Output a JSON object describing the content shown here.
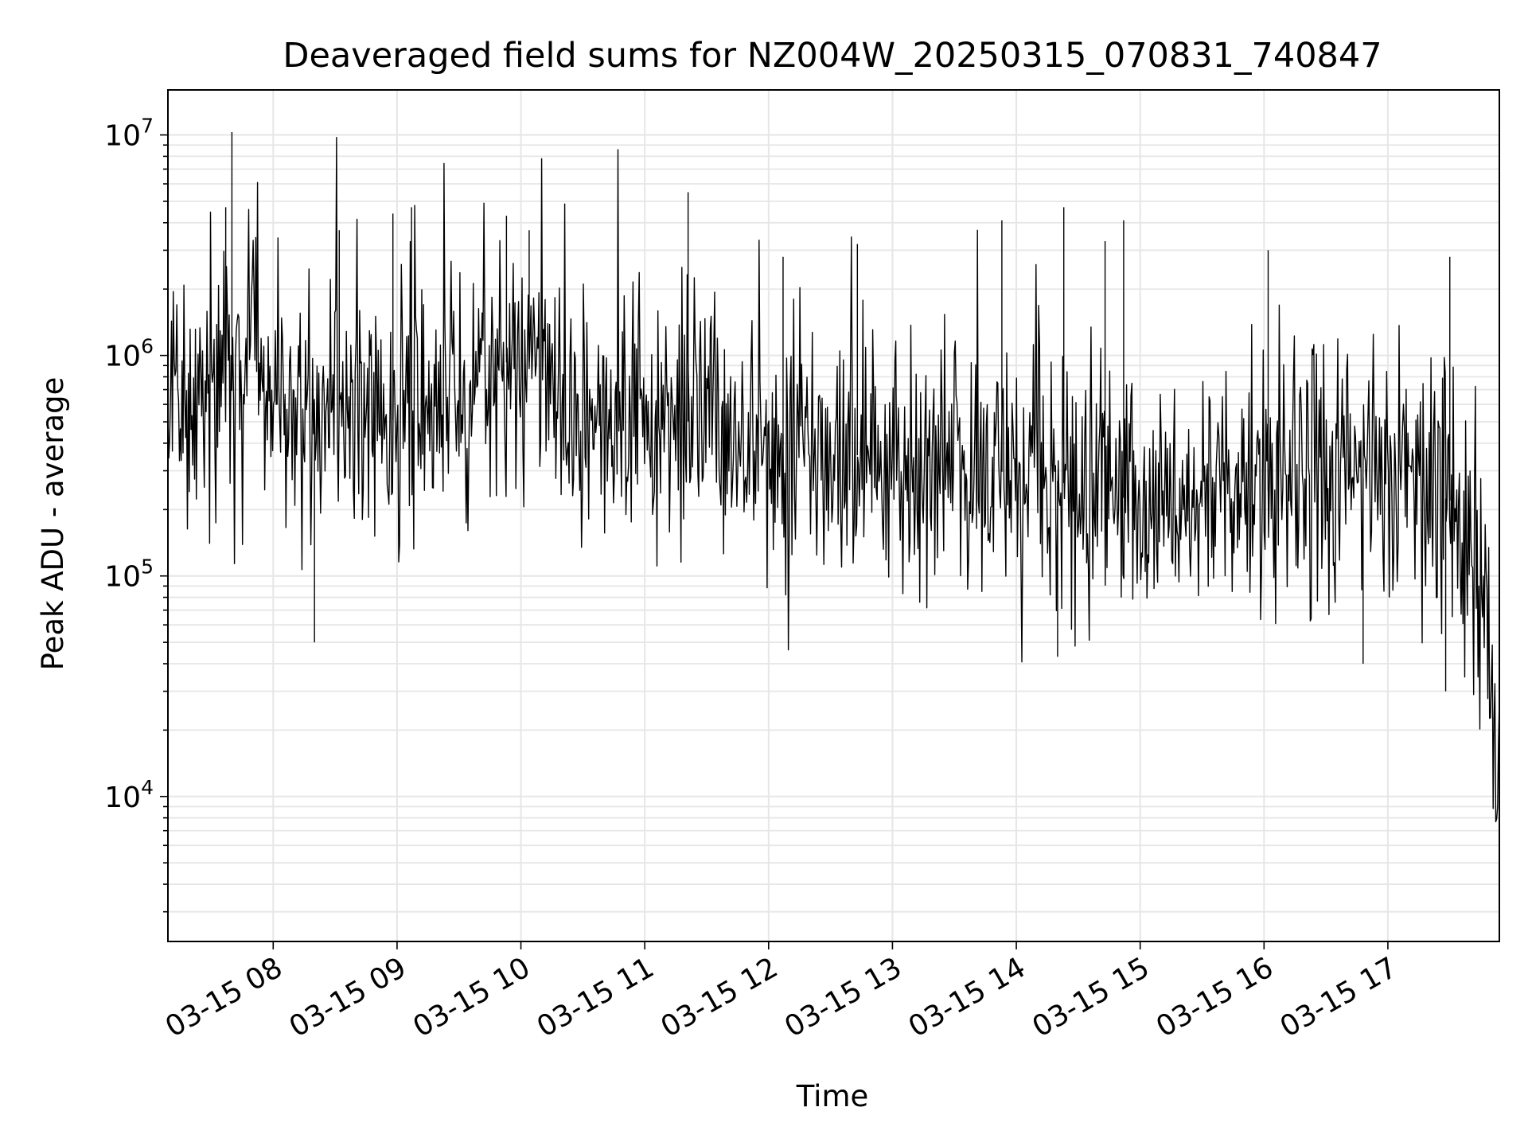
{
  "chart_data": {
    "type": "line",
    "title": "Deaveraged field sums for NZ004W_20250315_070831_740847",
    "xlabel": "Time",
    "ylabel": "Peak ADU - average",
    "yscale": "log",
    "ylim": [
      2200,
      16000000
    ],
    "xlim": [
      "2025-03-15 07:09",
      "2025-03-15 17:54"
    ],
    "grid": true,
    "series_color": "#000000",
    "grid_color": "#e6e6e6",
    "x_ticks": [
      {
        "label": "03-15 08",
        "t": "2025-03-15 08:00"
      },
      {
        "label": "03-15 09",
        "t": "2025-03-15 09:00"
      },
      {
        "label": "03-15 10",
        "t": "2025-03-15 10:00"
      },
      {
        "label": "03-15 11",
        "t": "2025-03-15 11:00"
      },
      {
        "label": "03-15 12",
        "t": "2025-03-15 12:00"
      },
      {
        "label": "03-15 13",
        "t": "2025-03-15 13:00"
      },
      {
        "label": "03-15 14",
        "t": "2025-03-15 14:00"
      },
      {
        "label": "03-15 15",
        "t": "2025-03-15 15:00"
      },
      {
        "label": "03-15 16",
        "t": "2025-03-15 16:00"
      },
      {
        "label": "03-15 17",
        "t": "2025-03-15 17:00"
      }
    ],
    "y_ticks": [
      {
        "base": "10",
        "exp": "4",
        "value": 10000
      },
      {
        "base": "10",
        "exp": "5",
        "value": 100000
      },
      {
        "base": "10",
        "exp": "6",
        "value": 1000000
      },
      {
        "base": "10",
        "exp": "7",
        "value": 10000000
      }
    ],
    "series": [
      {
        "x": [
          "2025-03-15 07:09",
          "2025-03-15 07:15",
          "2025-03-15 07:20",
          "2025-03-15 07:25",
          "2025-03-15 07:30",
          "2025-03-15 07:35",
          "2025-03-15 07:40",
          "2025-03-15 07:45",
          "2025-03-15 07:50",
          "2025-03-15 07:55",
          "2025-03-15 08:00",
          "2025-03-15 08:10",
          "2025-03-15 08:20",
          "2025-03-15 08:30",
          "2025-03-15 08:40",
          "2025-03-15 08:50",
          "2025-03-15 09:00",
          "2025-03-15 09:10",
          "2025-03-15 09:20",
          "2025-03-15 09:30",
          "2025-03-15 09:40",
          "2025-03-15 09:50",
          "2025-03-15 10:00",
          "2025-03-15 10:10",
          "2025-03-15 10:20",
          "2025-03-15 10:30",
          "2025-03-15 10:40",
          "2025-03-15 10:50",
          "2025-03-15 11:00",
          "2025-03-15 11:10",
          "2025-03-15 11:20",
          "2025-03-15 11:30",
          "2025-03-15 11:40",
          "2025-03-15 11:50",
          "2025-03-15 12:00",
          "2025-03-15 12:10",
          "2025-03-15 12:20",
          "2025-03-15 12:30",
          "2025-03-15 12:40",
          "2025-03-15 12:50",
          "2025-03-15 13:00",
          "2025-03-15 13:10",
          "2025-03-15 13:20",
          "2025-03-15 13:30",
          "2025-03-15 13:40",
          "2025-03-15 13:50",
          "2025-03-15 14:00",
          "2025-03-15 14:10",
          "2025-03-15 14:20",
          "2025-03-15 14:30",
          "2025-03-15 14:40",
          "2025-03-15 14:50",
          "2025-03-15 15:00",
          "2025-03-15 15:10",
          "2025-03-15 15:20",
          "2025-03-15 15:30",
          "2025-03-15 15:40",
          "2025-03-15 15:50",
          "2025-03-15 16:00",
          "2025-03-15 16:10",
          "2025-03-15 16:20",
          "2025-03-15 16:30",
          "2025-03-15 16:40",
          "2025-03-15 16:50",
          "2025-03-15 17:00",
          "2025-03-15 17:10",
          "2025-03-15 17:20",
          "2025-03-15 17:30",
          "2025-03-15 17:35",
          "2025-03-15 17:40",
          "2025-03-15 17:45",
          "2025-03-15 17:50",
          "2025-03-15 17:54"
        ],
        "y": [
          500000,
          650000,
          750000,
          800000,
          900000,
          1000000,
          950000,
          800000,
          900000,
          750000,
          700000,
          600000,
          550000,
          600000,
          600000,
          550000,
          500000,
          600000,
          650000,
          700000,
          800000,
          900000,
          1000000,
          850000,
          600000,
          500000,
          500000,
          550000,
          600000,
          550000,
          500000,
          520000,
          450000,
          400000,
          380000,
          400000,
          420000,
          380000,
          350000,
          360000,
          340000,
          330000,
          320000,
          300000,
          300000,
          300000,
          290000,
          280000,
          270000,
          250000,
          240000,
          230000,
          210000,
          200000,
          190000,
          190000,
          200000,
          220000,
          240000,
          260000,
          260000,
          270000,
          280000,
          280000,
          280000,
          260000,
          240000,
          220000,
          200000,
          150000,
          90000,
          40000,
          9000
        ]
      }
    ],
    "spikes": [
      {
        "t": "2025-03-15 07:40",
        "y": 10300000
      },
      {
        "t": "2025-03-15 07:37",
        "y": 4700000
      },
      {
        "t": "2025-03-15 08:20",
        "y": 50000
      },
      {
        "t": "2025-03-15 08:32",
        "y": 3700000
      },
      {
        "t": "2025-03-15 08:58",
        "y": 4400000
      },
      {
        "t": "2025-03-15 09:07",
        "y": 4700000
      },
      {
        "t": "2025-03-15 09:53",
        "y": 4300000
      },
      {
        "t": "2025-03-15 10:04",
        "y": 3700000
      },
      {
        "t": "2025-03-15 11:21",
        "y": 5500000
      },
      {
        "t": "2025-03-15 12:07",
        "y": 2800000
      },
      {
        "t": "2025-03-15 12:43",
        "y": 3200000
      },
      {
        "t": "2025-03-15 13:53",
        "y": 4100000
      },
      {
        "t": "2025-03-15 14:20",
        "y": 43000
      },
      {
        "t": "2025-03-15 14:23",
        "y": 4700000
      },
      {
        "t": "2025-03-15 14:52",
        "y": 4100000
      },
      {
        "t": "2025-03-15 14:43",
        "y": 3300000
      },
      {
        "t": "2025-03-15 16:02",
        "y": 3000000
      },
      {
        "t": "2025-03-15 16:48",
        "y": 40000
      },
      {
        "t": "2025-03-15 17:30",
        "y": 2800000
      },
      {
        "t": "2025-03-15 17:28",
        "y": 30000
      },
      {
        "t": "2025-03-15 17:54",
        "y": 7000
      }
    ]
  }
}
